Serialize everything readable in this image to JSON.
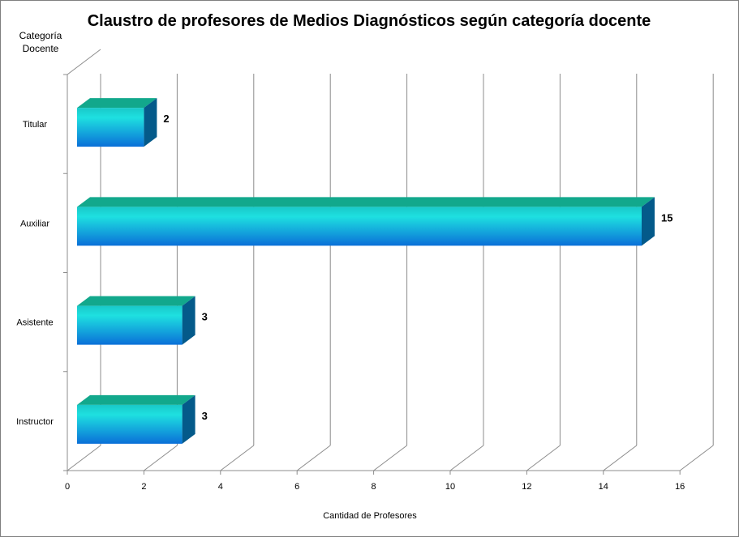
{
  "chart_data": {
    "type": "bar",
    "orientation": "horizontal",
    "title": "Claustro de profesores de Medios Diagnósticos según categoría docente",
    "xlabel": "Cantidad de Profesores",
    "ylabel": "Categoría Docente",
    "categories": [
      "Titular",
      "Auxiliar",
      "Asistente",
      "Instructor"
    ],
    "values": [
      2,
      15,
      3,
      3
    ],
    "xlim": [
      0,
      16
    ],
    "xticks": [
      0,
      2,
      4,
      6,
      8,
      10,
      12,
      14,
      16
    ],
    "grid": true,
    "legend": "none",
    "three_d": true,
    "colors": {
      "bar_top": "#12a88c",
      "bar_front_light": "#1ee0dc",
      "bar_front_dark": "#0066cc",
      "bar_side": "#045a8a",
      "gridline": "#8c8c8c"
    }
  }
}
